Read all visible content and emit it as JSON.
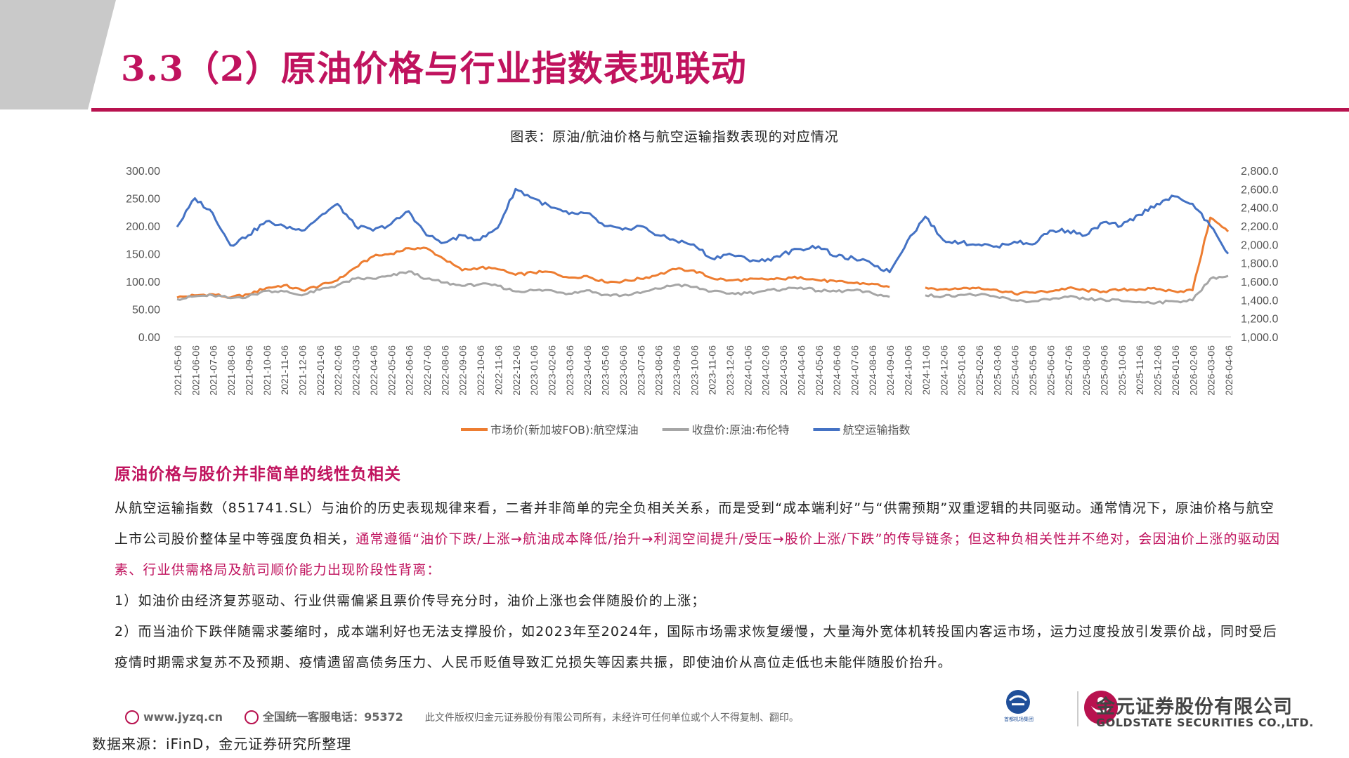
{
  "title": "3.3（2）原油价格与行业指数表现联动",
  "chart_title": "图表：原油/航油价格与航空运输指数表现的对应情况",
  "chart_data": {
    "type": "line",
    "left_axis": {
      "min": 0,
      "max": 300,
      "ticks": [
        "300.00",
        "250.00",
        "200.00",
        "150.00",
        "100.00",
        "50.00",
        "0.00"
      ]
    },
    "right_axis": {
      "min": 1000,
      "max": 2800,
      "ticks": [
        "2,800.0",
        "2,600.0",
        "2,400.0",
        "2,200.0",
        "2,000.0",
        "1,800.0",
        "1,600.0",
        "1,400.0",
        "1,200.0",
        "1,000.0"
      ]
    },
    "x_categories": [
      "2021-05-06",
      "2021-06-06",
      "2021-07-06",
      "2021-08-06",
      "2021-09-06",
      "2021-10-06",
      "2021-11-06",
      "2021-12-06",
      "2022-01-06",
      "2022-02-06",
      "2022-03-06",
      "2022-04-06",
      "2022-05-06",
      "2022-06-06",
      "2022-07-06",
      "2022-08-06",
      "2022-09-06",
      "2022-10-06",
      "2022-11-06",
      "2022-12-06",
      "2023-01-06",
      "2023-02-06",
      "2023-03-06",
      "2023-04-06",
      "2023-05-06",
      "2023-06-06",
      "2023-07-06",
      "2023-08-06",
      "2023-09-06",
      "2023-10-06",
      "2023-11-06",
      "2023-12-06",
      "2024-01-06",
      "2024-02-06",
      "2024-03-06",
      "2024-04-06",
      "2024-05-06",
      "2024-06-06",
      "2024-07-06",
      "2024-08-06",
      "2024-09-06",
      "2024-10-06",
      "2024-11-06",
      "2024-12-06",
      "2025-01-06",
      "2025-02-06",
      "2025-03-06",
      "2025-04-06",
      "2025-05-06",
      "2025-06-06",
      "2025-07-06",
      "2025-08-06",
      "2025-09-06",
      "2025-10-06",
      "2025-11-06",
      "2025-12-06",
      "2026-01-06",
      "2026-02-06",
      "2026-03-06",
      "2026-04-06"
    ],
    "series": [
      {
        "name": "市场价(新加坡FOB):航空煤油",
        "axis": "left",
        "color": "#ed7d31",
        "values": [
          71,
          75,
          77,
          71,
          77,
          88,
          93,
          84,
          92,
          102,
          125,
          145,
          150,
          160,
          160,
          140,
          120,
          125,
          122,
          112,
          116,
          117,
          107,
          110,
          99,
          100,
          105,
          112,
          122,
          120,
          106,
          102,
          103,
          104,
          104,
          108,
          102,
          100,
          97,
          96,
          90,
          null,
          89,
          86,
          87,
          89,
          85,
          78,
          80,
          82,
          88,
          84,
          82,
          85,
          86,
          86,
          82,
          84,
          215,
          190
        ],
        "gaps_before": [
          41
        ]
      },
      {
        "name": "收盘价:原油:布伦特",
        "axis": "left",
        "color": "#a6a6a6",
        "values": [
          68,
          73,
          75,
          70,
          73,
          83,
          82,
          75,
          85,
          93,
          105,
          105,
          110,
          118,
          105,
          98,
          92,
          95,
          92,
          82,
          84,
          84,
          78,
          84,
          76,
          75,
          79,
          87,
          94,
          90,
          82,
          78,
          79,
          83,
          86,
          89,
          83,
          82,
          84,
          79,
          72,
          null,
          75,
          73,
          76,
          76,
          72,
          66,
          64,
          67,
          72,
          68,
          67,
          65,
          63,
          62,
          64,
          66,
          105,
          110
        ],
        "gaps_before": [
          41
        ]
      },
      {
        "name": "航空运输指数",
        "axis": "right",
        "color": "#4472c4",
        "values": [
          2190,
          2500,
          2340,
          1990,
          2100,
          2250,
          2200,
          2150,
          2300,
          2440,
          2200,
          2150,
          2220,
          2360,
          2100,
          2020,
          2100,
          2050,
          2180,
          2600,
          2500,
          2400,
          2330,
          2340,
          2200,
          2160,
          2200,
          2100,
          2040,
          2000,
          1850,
          1900,
          1840,
          1820,
          1900,
          1950,
          1980,
          1870,
          1850,
          1790,
          1700,
          2040,
          2300,
          2050,
          2020,
          2000,
          1980,
          2030,
          2000,
          2150,
          2150,
          2100,
          2240,
          2200,
          2320,
          2440,
          2520,
          2440,
          2200,
          1900
        ]
      }
    ],
    "legend_position": "bottom",
    "grid": false
  },
  "section_heading": "原油价格与股价并非简单的线性负相关",
  "paragraphs": {
    "p1_a": "从航空运输指数（851741.SL）与油价的历史表现规律来看，二者并非简单的完全负相关关系，而是受到“成本端利好”与“供需预期”双重逻辑的共同驱动。通常情况下，原油价格与航空上市公司股价整体呈中等强度负相关，",
    "p1_b": "通常遵循“油价下跌/上涨→航油成本降低/抬升→利润空间提升/受压→股价上涨/下跌”的传导链条；但这种负相关性并不绝对，会因油价上涨的驱动因素、行业供需格局及航司顺价能力出现阶段性背离：",
    "p2": "1）如油价由经济复苏驱动、行业供需偏紧且票价传导充分时，油价上涨也会伴随股价的上涨；",
    "p3": "2）而当油价下跌伴随需求萎缩时，成本端利好也无法支撑股价，如2023年至2024年，国际市场需求恢复缓慢，大量海外宽体机转投国内客运市场，运力过度投放引发票价战，同时受后疫情时期需求复苏不及预期、疫情遗留高债务压力、人民币贬值导致汇兑损失等因素共振，即使油价从高位走低也未能伴随股价抬升。"
  },
  "footer": {
    "website": "www.jyzq.cn",
    "hotline": "全国统一客服电话：95372",
    "copyright": "此文件版权归金元证券股份有限公司所有，未经许可任何单位或个人不得复制、翻印。"
  },
  "source": "数据来源：iFinD，金元证券研究所整理",
  "brand": {
    "airport_caption": "首都机场集团",
    "name_cn": "金元证券股份有限公司",
    "name_en": "GOLDSTATE SECURITIES CO.,LTD."
  }
}
